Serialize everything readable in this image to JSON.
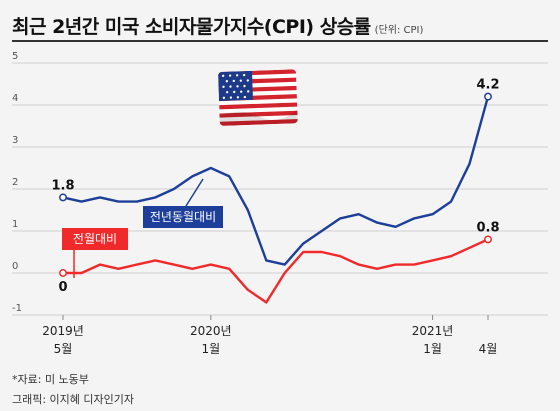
{
  "header": {
    "title": "최근 2년간 미국 소비자물가지수(CPI) 상승률",
    "unit": "(단위: CPI)"
  },
  "footer": {
    "source": "*자료: 미 노동부",
    "credit": "그래픽: 이지혜 디자인기자"
  },
  "colors": {
    "blue_series": "#1e3f99",
    "red_series": "#f02a2a",
    "grid": "#d0d0d0"
  },
  "chart_data": {
    "type": "line",
    "title": "최근 2년간 미국 소비자물가지수(CPI) 상승률",
    "xlabel": "",
    "ylabel": "",
    "ylim": [
      -1,
      5
    ],
    "yticks": [
      "-1",
      "0",
      "1",
      "2",
      "3",
      "4",
      "5"
    ],
    "grid": "horizontal",
    "x": [
      "2019-05",
      "2019-06",
      "2019-07",
      "2019-08",
      "2019-09",
      "2019-10",
      "2019-11",
      "2019-12",
      "2020-01",
      "2020-02",
      "2020-03",
      "2020-04",
      "2020-05",
      "2020-06",
      "2020-07",
      "2020-08",
      "2020-09",
      "2020-10",
      "2020-11",
      "2020-12",
      "2021-01",
      "2021-02",
      "2021-03",
      "2021-04"
    ],
    "x_tick_labels": [
      {
        "x": "2019-05",
        "line1": "2019년",
        "line2": "5월"
      },
      {
        "x": "2020-01",
        "line1": "2020년",
        "line2": "1월"
      },
      {
        "x": "2021-01",
        "line1": "2021년",
        "line2": "1월"
      },
      {
        "x": "2021-04",
        "line1": "",
        "line2": "4월"
      }
    ],
    "series": [
      {
        "name": "전년동월대비",
        "color": "#1e3f99",
        "values": [
          1.8,
          1.7,
          1.8,
          1.7,
          1.7,
          1.8,
          2.0,
          2.3,
          2.5,
          2.3,
          1.5,
          0.3,
          0.2,
          0.7,
          1.0,
          1.3,
          1.4,
          1.2,
          1.1,
          1.3,
          1.4,
          1.7,
          2.6,
          4.2
        ]
      },
      {
        "name": "전월대비",
        "color": "#f02a2a",
        "values": [
          0.0,
          0.0,
          0.2,
          0.1,
          0.2,
          0.3,
          0.2,
          0.1,
          0.2,
          0.1,
          -0.4,
          -0.7,
          0.0,
          0.5,
          0.5,
          0.4,
          0.2,
          0.1,
          0.2,
          0.2,
          0.3,
          0.4,
          0.6,
          0.8
        ]
      }
    ],
    "annotations": [
      {
        "series": 0,
        "index": 0,
        "text": "1.8"
      },
      {
        "series": 0,
        "index": 23,
        "text": "4.2"
      },
      {
        "series": 1,
        "index": 0,
        "text": "0"
      },
      {
        "series": 1,
        "index": 23,
        "text": "0.8"
      }
    ]
  }
}
